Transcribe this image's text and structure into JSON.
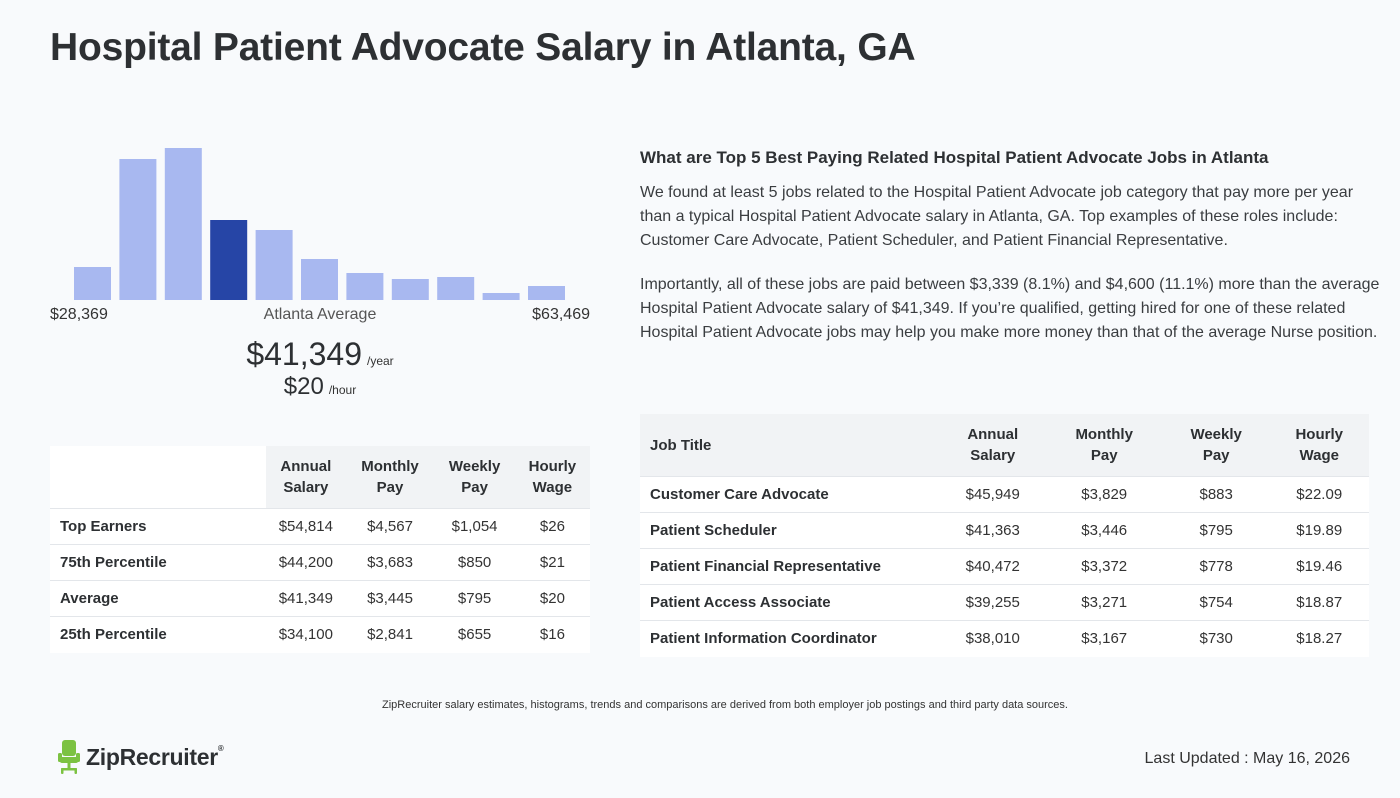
{
  "page_title": "Hospital Patient Advocate Salary in Atlanta, GA",
  "histogram": {
    "min_label": "$28,369",
    "mid_label": "Atlanta Average",
    "max_label": "$63,469",
    "bar_color": "#a8b8f0",
    "highlight_color": "#2645a6",
    "highlight_index": 3
  },
  "chart_data": {
    "type": "bar",
    "categories": [
      "1",
      "2",
      "3",
      "4",
      "5",
      "6",
      "7",
      "8",
      "9",
      "10",
      "11"
    ],
    "values": [
      33,
      141,
      152,
      80,
      70,
      41,
      27,
      21,
      23,
      7,
      14
    ],
    "xlabel": "",
    "ylabel": ""
  },
  "average": {
    "annual": "$41,349",
    "annual_unit": "/year",
    "hourly": "$20",
    "hourly_unit": "/hour"
  },
  "percentile_table": {
    "headers": [
      [
        "Annual",
        "Salary"
      ],
      [
        "Monthly",
        "Pay"
      ],
      [
        "Weekly",
        "Pay"
      ],
      [
        "Hourly",
        "Wage"
      ]
    ],
    "rows": [
      {
        "label": "Top Earners",
        "values": [
          "$54,814",
          "$4,567",
          "$1,054",
          "$26"
        ]
      },
      {
        "label": "75th Percentile",
        "values": [
          "$44,200",
          "$3,683",
          "$850",
          "$21"
        ]
      },
      {
        "label": "Average",
        "values": [
          "$41,349",
          "$3,445",
          "$795",
          "$20"
        ]
      },
      {
        "label": "25th Percentile",
        "values": [
          "$34,100",
          "$2,841",
          "$655",
          "$16"
        ]
      }
    ]
  },
  "related": {
    "heading": "What are Top 5 Best Paying Related Hospital Patient Advocate Jobs in Atlanta",
    "para1": "We found at least 5 jobs related to the Hospital Patient Advocate job category that pay more per year than a typical Hospital Patient Advocate salary in Atlanta, GA. Top examples of these roles include: Customer Care Advocate, Patient Scheduler, and Patient Financial Representative.",
    "para2": "Importantly, all of these jobs are paid between $3,339 (8.1%) and $4,600 (11.1%) more than the average Hospital Patient Advocate salary of $41,349. If you’re qualified, getting hired for one of these related Hospital Patient Advocate jobs may help you make more money than that of the average Nurse position."
  },
  "jobs_table": {
    "title_header": "Job Title",
    "headers": [
      [
        "Annual",
        "Salary"
      ],
      [
        "Monthly",
        "Pay"
      ],
      [
        "Weekly",
        "Pay"
      ],
      [
        "Hourly",
        "Wage"
      ]
    ],
    "rows": [
      {
        "label": "Customer Care Advocate",
        "values": [
          "$45,949",
          "$3,829",
          "$883",
          "$22.09"
        ]
      },
      {
        "label": "Patient Scheduler",
        "values": [
          "$41,363",
          "$3,446",
          "$795",
          "$19.89"
        ]
      },
      {
        "label": "Patient Financial Representative",
        "values": [
          "$40,472",
          "$3,372",
          "$778",
          "$19.46"
        ]
      },
      {
        "label": "Patient Access Associate",
        "values": [
          "$39,255",
          "$3,271",
          "$754",
          "$18.87"
        ]
      },
      {
        "label": "Patient Information Coordinator",
        "values": [
          "$38,010",
          "$3,167",
          "$730",
          "$18.27"
        ]
      }
    ]
  },
  "footnote": "ZipRecruiter salary estimates, histograms, trends and comparisons are derived from both employer job postings and third party data sources.",
  "logo": {
    "text": "ZipRecruiter",
    "reg": "®",
    "icon": "chair-icon",
    "color": "#7cc242"
  },
  "last_updated": "Last Updated : May 16, 2026"
}
